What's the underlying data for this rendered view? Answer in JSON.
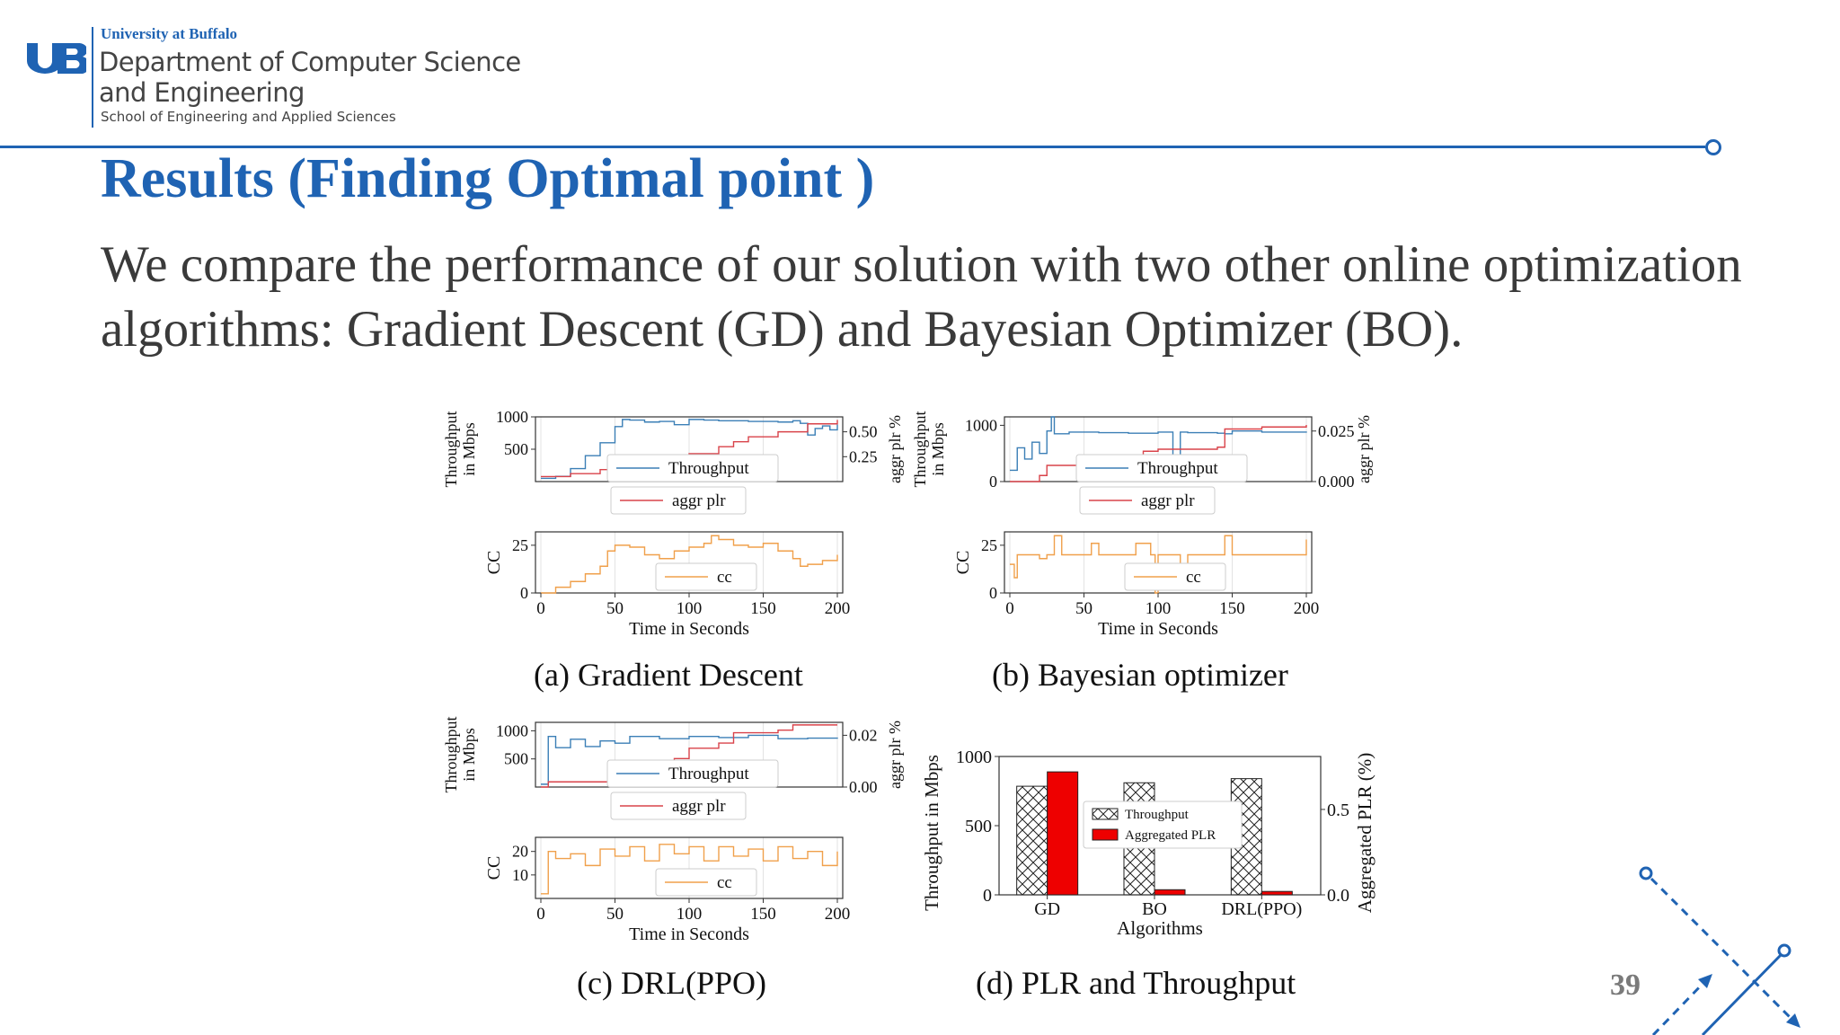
{
  "header": {
    "university": "University at Buffalo",
    "department_line1": "Department of Computer Science",
    "department_line2": "and Engineering",
    "school": "School of Engineering and Applied Sciences"
  },
  "slide": {
    "title": "Results (Finding Optimal point )",
    "body_line1": "We compare the performance of our solution with two other online optimization",
    "body_line2": "algorithms: Gradient Descent (GD) and Bayesian Optimizer (BO).",
    "page_number": "39"
  },
  "colors": {
    "brand": "#1f63b3",
    "throughput": "#3b7fb6",
    "plr": "#d9434a",
    "cc": "#f0a04b",
    "bar_plr": "#ee0000"
  },
  "chart_data": [
    {
      "type": "line",
      "caption": "(a) Gradient Descent",
      "top": {
        "ylabel": "Throughput\nin Mbps",
        "ylabel2": "aggr plr %",
        "ylim": [
          0,
          1000
        ],
        "yticks": [
          "1000",
          "500"
        ],
        "ylim2": [
          0,
          0.65
        ],
        "yticks2": [
          "0.50",
          "0.25"
        ],
        "series": [
          {
            "name": "Throughput",
            "axis": "left",
            "x": [
              0,
              10,
              20,
              30,
              40,
              50,
              55,
              60,
              70,
              80,
              90,
              100,
              110,
              120,
              140,
              160,
              170,
              175,
              180,
              185,
              190,
              195,
              200
            ],
            "values": [
              50,
              80,
              200,
              400,
              600,
              850,
              960,
              950,
              920,
              930,
              880,
              960,
              950,
              940,
              930,
              920,
              940,
              900,
              720,
              820,
              860,
              800,
              880
            ]
          },
          {
            "name": "aggr plr",
            "axis": "right",
            "x": [
              0,
              20,
              40,
              60,
              80,
              100,
              120,
              130,
              140,
              160,
              180,
              200
            ],
            "values": [
              0.05,
              0.08,
              0.12,
              0.2,
              0.26,
              0.28,
              0.35,
              0.4,
              0.45,
              0.5,
              0.58,
              0.62
            ]
          }
        ]
      },
      "bottom": {
        "ylabel": "CC",
        "ylim": [
          0,
          32
        ],
        "yticks": [
          "25",
          "0"
        ],
        "series": [
          {
            "name": "cc",
            "x": [
              0,
              10,
              20,
              30,
              40,
              45,
              50,
              60,
              70,
              80,
              90,
              100,
              110,
              115,
              120,
              130,
              140,
              150,
              160,
              170,
              175,
              180,
              190,
              200
            ],
            "values": [
              0,
              3,
              6,
              10,
              14,
              22,
              25,
              24,
              20,
              18,
              22,
              24,
              26,
              30,
              28,
              25,
              24,
              26,
              22,
              18,
              14,
              15,
              17,
              20
            ]
          }
        ]
      },
      "xlabel": "Time in Seconds",
      "xlim": [
        0,
        200
      ],
      "xticks": [
        "0",
        "50",
        "100",
        "150",
        "200"
      ]
    },
    {
      "type": "line",
      "caption": "(b) Bayesian optimizer",
      "top": {
        "ylabel": "Throughput\nin Mbps",
        "ylabel2": "aggr plr %",
        "ylim": [
          0,
          1150
        ],
        "yticks": [
          "1000",
          "0"
        ],
        "ylim2": [
          0,
          0.032
        ],
        "yticks2": [
          "0.025",
          "0.000"
        ],
        "series": [
          {
            "name": "Throughput",
            "axis": "left",
            "x": [
              0,
              5,
              10,
              15,
              20,
              25,
              28,
              30,
              40,
              60,
              80,
              100,
              110,
              115,
              120,
              140,
              145,
              150,
              170,
              200
            ],
            "values": [
              200,
              600,
              400,
              700,
              500,
              900,
              1150,
              850,
              880,
              870,
              860,
              880,
              100,
              880,
              870,
              860,
              850,
              900,
              880,
              890
            ]
          },
          {
            "name": "aggr plr",
            "axis": "right",
            "x": [
              0,
              20,
              25,
              50,
              60,
              90,
              100,
              140,
              145,
              170,
              200
            ],
            "values": [
              0,
              0.003,
              0.008,
              0.009,
              0.012,
              0.015,
              0.016,
              0.017,
              0.026,
              0.027,
              0.028
            ]
          }
        ]
      },
      "bottom": {
        "ylabel": "CC",
        "ylim": [
          0,
          32
        ],
        "yticks": [
          "25",
          "0"
        ],
        "series": [
          {
            "name": "cc",
            "x": [
              0,
              3,
              5,
              15,
              20,
              25,
              30,
              35,
              40,
              50,
              55,
              60,
              80,
              85,
              95,
              98,
              100,
              110,
              115,
              120,
              125,
              130,
              140,
              145,
              150,
              180,
              200
            ],
            "values": [
              15,
              8,
              20,
              20,
              18,
              20,
              30,
              20,
              20,
              20,
              26,
              20,
              20,
              26,
              20,
              0,
              20,
              20,
              14,
              20,
              20,
              20,
              20,
              30,
              20,
              20,
              28
            ]
          }
        ]
      },
      "xlabel": "Time in Seconds",
      "xlim": [
        0,
        200
      ],
      "xticks": [
        "0",
        "50",
        "100",
        "150",
        "200"
      ]
    },
    {
      "type": "line",
      "caption": "(c) DRL(PPO)",
      "top": {
        "ylabel": "Throughput\nin Mbps",
        "ylabel2": "aggr plr %",
        "ylim": [
          0,
          1150
        ],
        "yticks": [
          "1000",
          "500"
        ],
        "ylim2": [
          0,
          0.025
        ],
        "yticks2": [
          "0.02",
          "0.00"
        ],
        "series": [
          {
            "name": "Throughput",
            "axis": "left",
            "x": [
              0,
              5,
              10,
              20,
              30,
              40,
              50,
              60,
              80,
              100,
              120,
              140,
              160,
              180,
              200
            ],
            "values": [
              50,
              900,
              700,
              850,
              720,
              820,
              780,
              900,
              860,
              900,
              880,
              920,
              860,
              870,
              880
            ]
          },
          {
            "name": "aggr plr",
            "axis": "right",
            "x": [
              0,
              5,
              60,
              70,
              90,
              100,
              120,
              130,
              160,
              170,
              200
            ],
            "values": [
              0,
              0.002,
              0.002,
              0.006,
              0.011,
              0.015,
              0.017,
              0.021,
              0.022,
              0.024,
              0.024
            ]
          }
        ]
      },
      "bottom": {
        "ylabel": "CC",
        "ylim": [
          0,
          26
        ],
        "yticks": [
          "20",
          "10"
        ],
        "series": [
          {
            "name": "cc",
            "x": [
              0,
              5,
              10,
              20,
              30,
              40,
              50,
              60,
              70,
              80,
              90,
              100,
              110,
              120,
              130,
              140,
              150,
              160,
              170,
              180,
              190,
              200
            ],
            "values": [
              2,
              20,
              17,
              19,
              14,
              21,
              18,
              22,
              16,
              23,
              19,
              22,
              16,
              22,
              18,
              21,
              16,
              22,
              17,
              20,
              14,
              20
            ]
          }
        ]
      },
      "xlabel": "Time in Seconds",
      "xlim": [
        0,
        200
      ],
      "xticks": [
        "0",
        "50",
        "100",
        "150",
        "200"
      ]
    },
    {
      "type": "bar",
      "caption": "(d) PLR and Throughput",
      "categories": [
        "GD",
        "BO",
        "DRL(PPO)"
      ],
      "xlabel": "Algorithms",
      "ylabel": "Throughput in Mbps",
      "ylabel2": "Aggregated PLR (%)",
      "ylim": [
        0,
        1000
      ],
      "yticks": [
        "1000",
        "500",
        "0"
      ],
      "ylim2": [
        0,
        0.81
      ],
      "yticks2": [
        "0.5",
        "0.0"
      ],
      "series": [
        {
          "name": "Throughput",
          "axis": "left",
          "values": [
            785,
            810,
            840
          ]
        },
        {
          "name": "Aggregated PLR",
          "axis": "right",
          "values": [
            0.72,
            0.03,
            0.02
          ]
        }
      ]
    }
  ]
}
